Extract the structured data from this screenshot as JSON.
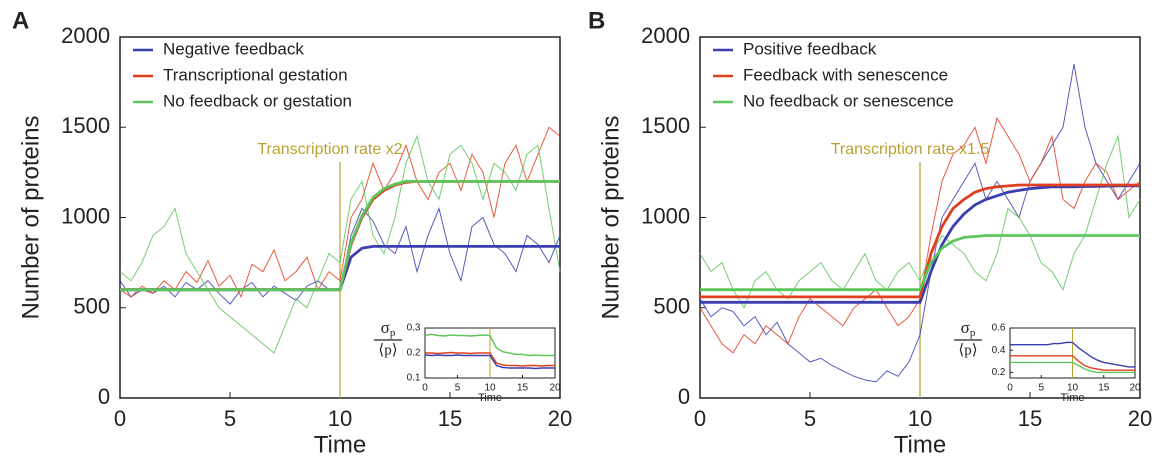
{
  "chart_data": [
    {
      "type": "line",
      "panel": "A",
      "xlabel": "Time",
      "ylabel": "Number of proteins",
      "annotation": "Transcription rate x2",
      "annotation_x": 10,
      "xlim": [
        0,
        20
      ],
      "ylim": [
        0,
        2000
      ],
      "xticks": [
        0,
        5,
        10,
        15,
        20
      ],
      "yticks": [
        0,
        500,
        1000,
        1500,
        2000
      ],
      "x": [
        0,
        0.5,
        1,
        1.5,
        2,
        2.5,
        3,
        3.5,
        4,
        4.5,
        5,
        5.5,
        6,
        6.5,
        7,
        7.5,
        8,
        8.5,
        9,
        9.5,
        10,
        10.5,
        11,
        11.5,
        12,
        12.5,
        13,
        13.5,
        14,
        14.5,
        15,
        15.5,
        16,
        16.5,
        17,
        17.5,
        18,
        18.5,
        19,
        19.5,
        20
      ],
      "series": [
        {
          "name": "Negative feedback",
          "color": "#3a3eb0",
          "values": [
            650,
            560,
            600,
            580,
            620,
            560,
            640,
            600,
            650,
            580,
            520,
            600,
            640,
            560,
            620,
            580,
            540,
            620,
            650,
            600,
            600,
            900,
            1050,
            980,
            850,
            800,
            950,
            700,
            900,
            1050,
            800,
            650,
            950,
            1000,
            850,
            800,
            700,
            900,
            850,
            750,
            900
          ],
          "mean": [
            600,
            600,
            600,
            600,
            600,
            600,
            600,
            600,
            600,
            600,
            600,
            600,
            600,
            600,
            600,
            600,
            600,
            600,
            600,
            600,
            600,
            780,
            830,
            840,
            840,
            840,
            840,
            840,
            840,
            840,
            840,
            840,
            840,
            840,
            840,
            840,
            840,
            840,
            840,
            840,
            840
          ]
        },
        {
          "name": "Transcriptional gestation",
          "color": "#e0401f",
          "values": [
            600,
            560,
            620,
            580,
            650,
            600,
            700,
            640,
            760,
            620,
            680,
            560,
            740,
            700,
            820,
            650,
            700,
            780,
            600,
            700,
            650,
            1000,
            1100,
            1300,
            1150,
            1250,
            1400,
            1200,
            1100,
            1250,
            1300,
            1150,
            1350,
            1250,
            1000,
            1300,
            1400,
            1200,
            1350,
            1500,
            1450
          ],
          "mean": [
            600,
            600,
            600,
            600,
            600,
            600,
            600,
            600,
            600,
            600,
            600,
            600,
            600,
            600,
            600,
            600,
            600,
            600,
            600,
            600,
            600,
            850,
            1000,
            1100,
            1150,
            1180,
            1195,
            1200,
            1200,
            1200,
            1200,
            1200,
            1200,
            1200,
            1200,
            1200,
            1200,
            1200,
            1200,
            1200,
            1200
          ]
        },
        {
          "name": "No feedback or gestation",
          "color": "#5cc65c",
          "values": [
            700,
            650,
            750,
            900,
            950,
            1050,
            800,
            700,
            600,
            500,
            450,
            400,
            350,
            300,
            250,
            400,
            550,
            500,
            650,
            800,
            750,
            1100,
            1200,
            900,
            800,
            1000,
            1300,
            1450,
            1200,
            1100,
            1350,
            1400,
            1300,
            1100,
            1300,
            1250,
            1150,
            1350,
            1400,
            1050,
            700
          ],
          "mean": [
            600,
            600,
            600,
            600,
            600,
            600,
            600,
            600,
            600,
            600,
            600,
            600,
            600,
            600,
            600,
            600,
            600,
            600,
            600,
            600,
            600,
            860,
            1010,
            1110,
            1160,
            1185,
            1200,
            1200,
            1200,
            1200,
            1200,
            1200,
            1200,
            1200,
            1200,
            1200,
            1200,
            1200,
            1200,
            1200,
            1200
          ]
        }
      ],
      "inset": {
        "xlabel": "Time",
        "ylabel_numerator": "σ",
        "ylabel_sub": "p",
        "ylabel_denominator": "⟨p⟩",
        "xlim": [
          0,
          20
        ],
        "ylim": [
          0.1,
          0.3
        ],
        "xticks": [
          0,
          5,
          10,
          15,
          20
        ],
        "yticks": [
          0.1,
          0.2,
          0.3
        ],
        "x": [
          0,
          1,
          2,
          3,
          4,
          5,
          6,
          7,
          8,
          9,
          10,
          11,
          12,
          13,
          14,
          15,
          16,
          17,
          18,
          19,
          20
        ],
        "series": [
          {
            "color": "#5cc65c",
            "values": [
              0.27,
              0.275,
              0.27,
              0.268,
              0.272,
              0.27,
              0.27,
              0.268,
              0.27,
              0.272,
              0.27,
              0.22,
              0.205,
              0.2,
              0.195,
              0.195,
              0.19,
              0.192,
              0.19,
              0.19,
              0.19
            ]
          },
          {
            "color": "#e0401f",
            "values": [
              0.2,
              0.2,
              0.198,
              0.2,
              0.202,
              0.2,
              0.2,
              0.198,
              0.2,
              0.2,
              0.2,
              0.16,
              0.152,
              0.15,
              0.15,
              0.148,
              0.15,
              0.15,
              0.148,
              0.15,
              0.15
            ]
          },
          {
            "color": "#3a3eb0",
            "values": [
              0.192,
              0.19,
              0.192,
              0.19,
              0.19,
              0.192,
              0.19,
              0.19,
              0.19,
              0.19,
              0.19,
              0.15,
              0.142,
              0.14,
              0.14,
              0.14,
              0.14,
              0.138,
              0.14,
              0.14,
              0.14
            ]
          }
        ]
      }
    },
    {
      "type": "line",
      "panel": "B",
      "xlabel": "Time",
      "ylabel": "Number of proteins",
      "annotation": "Transcription rate x1.5",
      "annotation_x": 10,
      "xlim": [
        0,
        20
      ],
      "ylim": [
        0,
        2000
      ],
      "xticks": [
        0,
        5,
        10,
        15,
        20
      ],
      "yticks": [
        0,
        500,
        1000,
        1500,
        2000
      ],
      "x": [
        0,
        0.5,
        1,
        1.5,
        2,
        2.5,
        3,
        3.5,
        4,
        4.5,
        5,
        5.5,
        6,
        6.5,
        7,
        7.5,
        8,
        8.5,
        9,
        9.5,
        10,
        10.5,
        11,
        11.5,
        12,
        12.5,
        13,
        13.5,
        14,
        14.5,
        15,
        15.5,
        16,
        16.5,
        17,
        17.5,
        18,
        18.5,
        19,
        19.5,
        20
      ],
      "series": [
        {
          "name": "Positive feedback",
          "color": "#3a3eb0",
          "values": [
            550,
            450,
            500,
            480,
            400,
            450,
            350,
            420,
            300,
            250,
            200,
            220,
            180,
            150,
            120,
            100,
            90,
            150,
            120,
            200,
            350,
            700,
            1000,
            1100,
            1200,
            1300,
            1100,
            1200,
            1100,
            1000,
            1200,
            1300,
            1400,
            1500,
            1850,
            1500,
            1300,
            1200,
            1100,
            1200,
            1300
          ],
          "mean": [
            530,
            530,
            530,
            530,
            530,
            530,
            530,
            530,
            530,
            530,
            530,
            530,
            530,
            530,
            530,
            530,
            530,
            530,
            530,
            530,
            530,
            700,
            850,
            950,
            1020,
            1070,
            1100,
            1120,
            1140,
            1150,
            1160,
            1165,
            1170,
            1170,
            1170,
            1172,
            1173,
            1174,
            1175,
            1175,
            1175
          ]
        },
        {
          "name": "Feedback with senescence",
          "color": "#e0401f",
          "values": [
            500,
            400,
            300,
            250,
            350,
            300,
            400,
            350,
            300,
            450,
            550,
            500,
            450,
            400,
            500,
            550,
            600,
            500,
            400,
            450,
            550,
            900,
            1200,
            1350,
            1400,
            1500,
            1300,
            1550,
            1450,
            1350,
            1200,
            1300,
            1450,
            1100,
            1050,
            1200,
            1300,
            1250,
            1100,
            1150,
            1200
          ],
          "mean": [
            560,
            560,
            560,
            560,
            560,
            560,
            560,
            560,
            560,
            560,
            560,
            560,
            560,
            560,
            560,
            560,
            560,
            560,
            560,
            560,
            560,
            800,
            950,
            1050,
            1100,
            1140,
            1160,
            1170,
            1175,
            1180,
            1180,
            1180,
            1180,
            1180,
            1180,
            1180,
            1180,
            1180,
            1180,
            1180,
            1180
          ]
        },
        {
          "name": "No feedback or senescence",
          "color": "#5cc65c",
          "values": [
            800,
            700,
            750,
            600,
            500,
            650,
            700,
            600,
            550,
            650,
            700,
            750,
            650,
            600,
            700,
            800,
            650,
            600,
            700,
            750,
            650,
            800,
            900,
            850,
            800,
            700,
            650,
            800,
            1050,
            1000,
            900,
            750,
            700,
            600,
            800,
            900,
            1100,
            1300,
            1450,
            1000,
            1100
          ],
          "mean": [
            600,
            600,
            600,
            600,
            600,
            600,
            600,
            600,
            600,
            600,
            600,
            600,
            600,
            600,
            600,
            600,
            600,
            600,
            600,
            600,
            600,
            750,
            830,
            870,
            890,
            895,
            900,
            900,
            900,
            900,
            900,
            900,
            900,
            900,
            900,
            900,
            900,
            900,
            900,
            900,
            900
          ]
        }
      ],
      "inset": {
        "xlabel": "Time",
        "ylabel_numerator": "σ",
        "ylabel_sub": "p",
        "ylabel_denominator": "⟨p⟩",
        "xlim": [
          0,
          20
        ],
        "ylim": [
          0.15,
          0.6
        ],
        "xticks": [
          0,
          5,
          10,
          15,
          20
        ],
        "yticks": [
          0.2,
          0.4,
          0.6
        ],
        "x": [
          0,
          1,
          2,
          3,
          4,
          5,
          6,
          7,
          8,
          9,
          10,
          11,
          12,
          13,
          14,
          15,
          16,
          17,
          18,
          19,
          20
        ],
        "series": [
          {
            "color": "#3a3eb0",
            "values": [
              0.45,
              0.45,
              0.45,
              0.45,
              0.45,
              0.45,
              0.45,
              0.46,
              0.46,
              0.47,
              0.47,
              0.42,
              0.38,
              0.34,
              0.31,
              0.29,
              0.28,
              0.27,
              0.26,
              0.25,
              0.25
            ]
          },
          {
            "color": "#e0401f",
            "values": [
              0.35,
              0.35,
              0.35,
              0.35,
              0.35,
              0.35,
              0.35,
              0.35,
              0.35,
              0.35,
              0.35,
              0.3,
              0.26,
              0.24,
              0.23,
              0.22,
              0.22,
              0.22,
              0.22,
              0.22,
              0.22
            ]
          },
          {
            "color": "#5cc65c",
            "values": [
              0.29,
              0.29,
              0.29,
              0.29,
              0.29,
              0.29,
              0.29,
              0.29,
              0.29,
              0.29,
              0.29,
              0.26,
              0.23,
              0.21,
              0.2,
              0.2,
              0.2,
              0.2,
              0.2,
              0.2,
              0.2
            ]
          }
        ]
      }
    }
  ]
}
